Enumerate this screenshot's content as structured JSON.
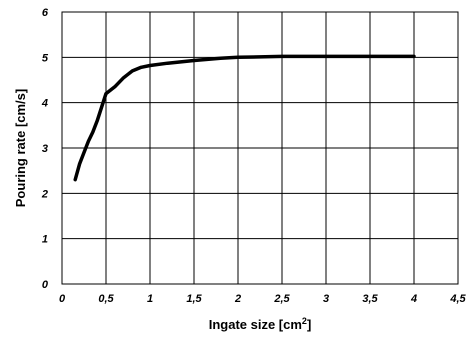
{
  "chart_data": {
    "type": "line",
    "title": "",
    "xlabel": "Ingate size [cm",
    "xlabel_sup": "2",
    "xlabel_end": "]",
    "ylabel": "Pouring rate [cm/s]",
    "xlim": [
      0,
      4.5
    ],
    "ylim": [
      0,
      6
    ],
    "grid": true,
    "x_ticks": [
      0,
      0.5,
      1,
      1.5,
      2,
      2.5,
      3,
      3.5,
      4,
      4.5
    ],
    "x_tick_labels": [
      "0",
      "0,5",
      "1",
      "1,5",
      "2",
      "2,5",
      "3",
      "3,5",
      "4",
      "4,5"
    ],
    "y_ticks": [
      0,
      1,
      2,
      3,
      4,
      5,
      6
    ],
    "y_tick_labels": [
      "0",
      "1",
      "2",
      "3",
      "4",
      "5",
      "6"
    ],
    "series": [
      {
        "color": "#000000",
        "x": [
          0.15,
          0.2,
          0.25,
          0.3,
          0.35,
          0.4,
          0.45,
          0.5,
          0.6,
          0.7,
          0.8,
          0.9,
          1.0,
          1.2,
          1.5,
          1.8,
          2.0,
          2.5,
          3.0,
          3.5,
          4.0
        ],
        "y": [
          2.3,
          2.65,
          2.9,
          3.15,
          3.35,
          3.6,
          3.9,
          4.2,
          4.35,
          4.55,
          4.7,
          4.78,
          4.82,
          4.87,
          4.93,
          4.98,
          5.0,
          5.02,
          5.02,
          5.02,
          5.02
        ]
      }
    ]
  }
}
